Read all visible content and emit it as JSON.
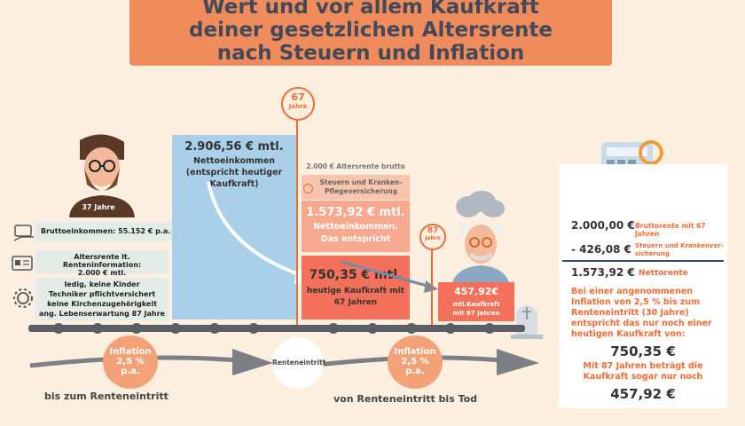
{
  "title": {
    "line1": "Wert und vor allem Kaufkraft",
    "line2": "deiner gesetzlichen Altersrente",
    "line3": "nach Steuern und Inflation"
  },
  "person": {
    "age_label": "37 Jahre",
    "income_label": "Bruttoeinkommen: 55.152 € p.a.",
    "pension_info_line1": "Altersrente lt. Renteninformation:",
    "pension_info_line2": "2.000 € mtl.",
    "assumptions": [
      "ledig, keine Kinder",
      "Techniker pflichtversichert",
      "keine Kirchenzugehörigkeit",
      "ang. Lebenserwartung 87 Jahre"
    ]
  },
  "blue_bar": {
    "amount": "2.906,56 € mtl.",
    "label_line1": "Nettoeinkommen",
    "label_line2": "(entspricht heutiger",
    "label_line3": "Kaufkraft)"
  },
  "marker67": {
    "number": "67",
    "unit": "Jahre"
  },
  "marker87": {
    "number": "87",
    "unit": "Jahre"
  },
  "pension_stack": {
    "gross_label": "2.000 € Altersrente brutto",
    "tax_label_line1": "Steuern und Kranken-",
    "tax_label_line2": "Pflegeversicherung",
    "net_amount": "1.573,92 € mtl.",
    "net_label_line1": "Nettoeinkommen.",
    "net_label_line2": "Das entspricht",
    "real_amount": "750,35 € mtl.",
    "real_label_line1": "heutige Kaufkraft mit",
    "real_label_line2": "67 Jahren"
  },
  "old_box": {
    "amount": "457,92€",
    "label_line1": "mtl.Kaufkraft",
    "label_line2": "mit 87 Jahren"
  },
  "timeline": {
    "inflation_line1": "Inflation",
    "inflation_line2": "2,5 %",
    "inflation_line3": "p.a.",
    "retirement_label": "Renteneintritt",
    "left_caption": "bis zum Renteneintritt",
    "right_caption": "von Renteneintritt bis Tod"
  },
  "summary": {
    "gross_value": "2.000,00 €",
    "gross_note": "Bruttorente mit 67 Jahren",
    "deduct_value": "- 426,08 €",
    "deduct_note_line1": "Steuern und Krankenver-",
    "deduct_note_line2": "sicherung",
    "net_value": "1.573,92 €",
    "net_note": "Nettorente",
    "para1_line1": "Bei einer angenommenen",
    "para1_line2": "Inflation von 2,5 % bis zum",
    "para1_line3": "Renteneintritt (30 Jahre)",
    "para1_line4": "entspricht das nur noch einer",
    "para1_line5": "heutigen Kaufkraft von:",
    "value1": "750,35 €",
    "para2_line1": "Mit 87 Jahren beträgt die",
    "para2_line2": "Kaufkraft sogar nur noch",
    "value2": "457,92 €"
  },
  "colors": {
    "accent": "#f08c5c",
    "blue": "#a9cfe9",
    "salmon": "#f3705a",
    "tag": "#e3ece6"
  }
}
